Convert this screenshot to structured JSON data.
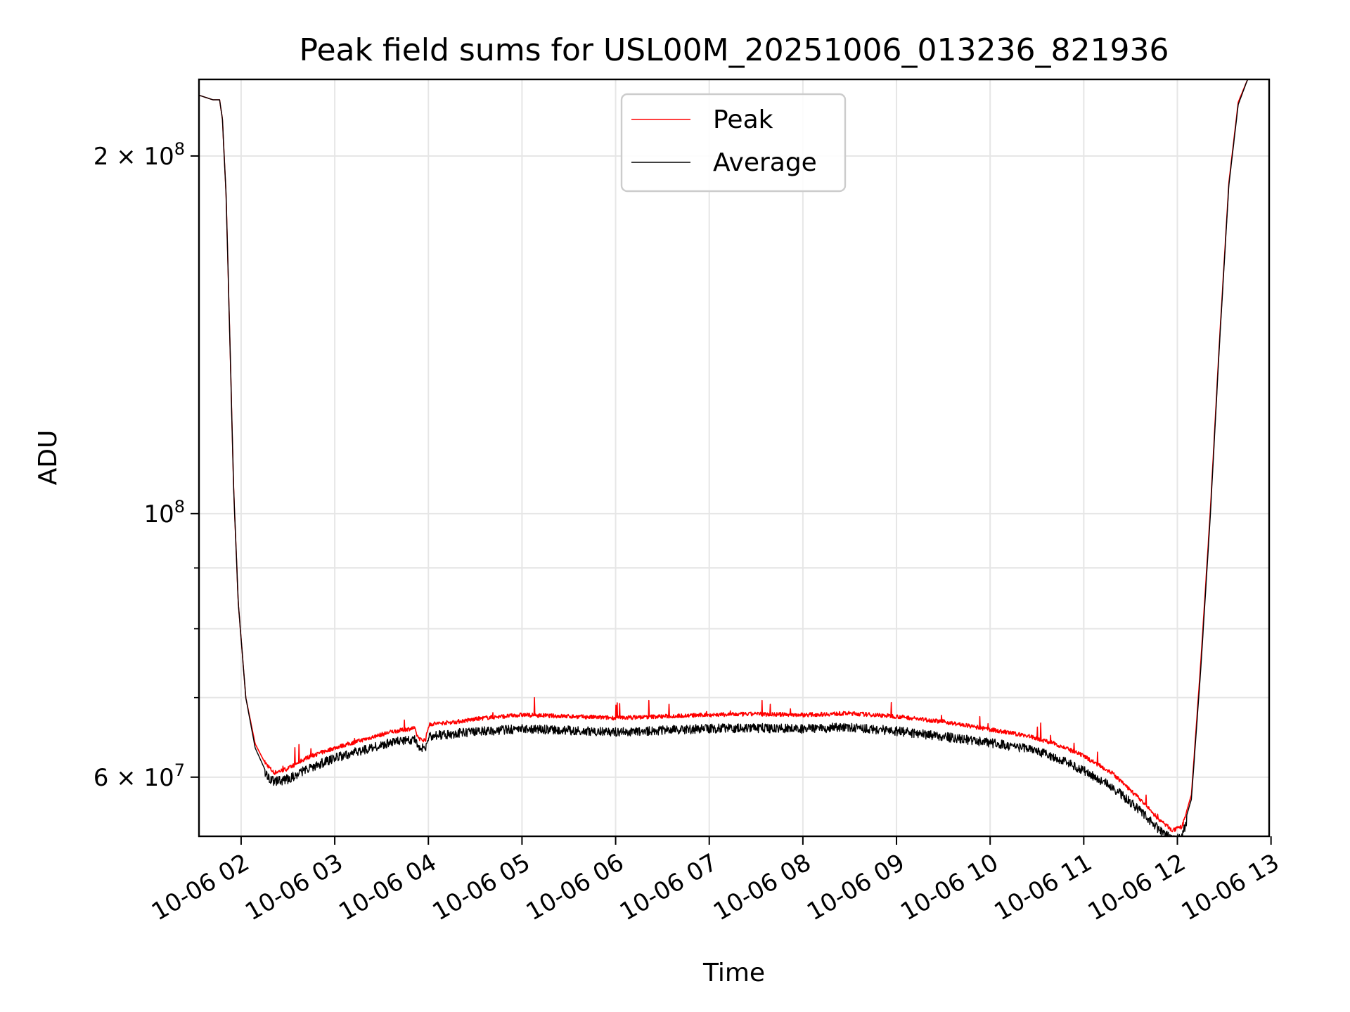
{
  "chart_data": {
    "type": "line",
    "title": "Peak field sums for USL00M_20251006_013236_821936",
    "xlabel": "Time",
    "ylabel": "ADU",
    "y_scale": "log",
    "xlim": [
      1.55,
      12.98
    ],
    "ylim": [
      53500000,
      232000000
    ],
    "x_ticks": [
      {
        "value": 2,
        "label": "10-06 02"
      },
      {
        "value": 3,
        "label": "10-06 03"
      },
      {
        "value": 4,
        "label": "10-06 04"
      },
      {
        "value": 5,
        "label": "10-06 05"
      },
      {
        "value": 6,
        "label": "10-06 06"
      },
      {
        "value": 7,
        "label": "10-06 07"
      },
      {
        "value": 8,
        "label": "10-06 08"
      },
      {
        "value": 9,
        "label": "10-06 09"
      },
      {
        "value": 10,
        "label": "10-06 10"
      },
      {
        "value": 11,
        "label": "10-06 11"
      },
      {
        "value": 12,
        "label": "10-06 12"
      },
      {
        "value": 13,
        "label": "10-06 13"
      }
    ],
    "y_ticks_major": [
      {
        "value": 60000000,
        "label_base": "6 × 10",
        "label_exp": "7"
      },
      {
        "value": 100000000,
        "label_base": "10",
        "label_exp": "8"
      },
      {
        "value": 200000000,
        "label_base": "2 × 10",
        "label_exp": "8"
      }
    ],
    "y_ticks_minor": [
      70000000,
      80000000,
      90000000
    ],
    "legend": {
      "location": "upper-center",
      "entries": [
        "Peak",
        "Average"
      ]
    },
    "series": [
      {
        "name": "Peak",
        "color": "#ff0000",
        "x": [
          1.55,
          1.7,
          1.77,
          1.8,
          1.84,
          1.88,
          1.92,
          1.97,
          2.05,
          2.15,
          2.25,
          2.35,
          2.5,
          2.7,
          3.0,
          3.3,
          3.6,
          3.85,
          3.88,
          3.92,
          3.97,
          4.0,
          4.02,
          4.3,
          4.6,
          5.0,
          5.5,
          6.0,
          6.5,
          7.0,
          7.5,
          8.0,
          8.5,
          9.0,
          9.5,
          10.0,
          10.4,
          10.7,
          11.0,
          11.3,
          11.6,
          11.8,
          11.95,
          12.05,
          12.15,
          12.25,
          12.35,
          12.45,
          12.55,
          12.65,
          12.75,
          12.85,
          12.98
        ],
        "y": [
          225000000,
          223000000,
          223000000,
          215000000,
          185000000,
          140000000,
          105000000,
          84000000,
          70000000,
          64000000,
          61800000,
          60500000,
          61000000,
          62300000,
          63500000,
          64500000,
          65500000,
          66000000,
          65000000,
          64500000,
          64500000,
          66200000,
          66500000,
          66800000,
          67300000,
          67700000,
          67500000,
          67300000,
          67500000,
          67700000,
          67800000,
          67700000,
          67900000,
          67500000,
          66800000,
          65800000,
          65000000,
          64000000,
          62500000,
          60500000,
          57500000,
          55300000,
          54100000,
          54500000,
          58000000,
          75000000,
          100000000,
          140000000,
          190000000,
          222000000,
          232000000,
          232000000,
          232000000
        ]
      },
      {
        "name": "Average",
        "color": "#000000",
        "x": [
          1.55,
          1.7,
          1.77,
          1.8,
          1.84,
          1.88,
          1.92,
          1.97,
          2.05,
          2.15,
          2.25,
          2.35,
          2.5,
          2.7,
          3.0,
          3.3,
          3.6,
          3.85,
          3.88,
          3.92,
          3.97,
          4.0,
          4.02,
          4.3,
          4.6,
          5.0,
          5.5,
          6.0,
          6.5,
          7.0,
          7.5,
          8.0,
          8.5,
          9.0,
          9.5,
          10.0,
          10.4,
          10.7,
          11.0,
          11.3,
          11.6,
          11.8,
          11.95,
          12.05,
          12.15,
          12.25,
          12.35,
          12.45,
          12.55,
          12.65,
          12.75,
          12.85,
          12.98
        ],
        "y": [
          225000000,
          223000000,
          223000000,
          215000000,
          185000000,
          140000000,
          105000000,
          84000000,
          70000000,
          63500000,
          61000000,
          60000000,
          60300000,
          61500000,
          62800000,
          63800000,
          64700000,
          65200000,
          64300000,
          64000000,
          64000000,
          65400000,
          65600000,
          65900000,
          66200000,
          66500000,
          66300000,
          66100000,
          66300000,
          66500000,
          66600000,
          66500000,
          66700000,
          66200000,
          65500000,
          64700000,
          64000000,
          62900000,
          61300000,
          59400000,
          56800000,
          54700000,
          53600000,
          54000000,
          57500000,
          74000000,
          99000000,
          139000000,
          189000000,
          221000000,
          232000000,
          232000000,
          232000000
        ]
      }
    ]
  }
}
